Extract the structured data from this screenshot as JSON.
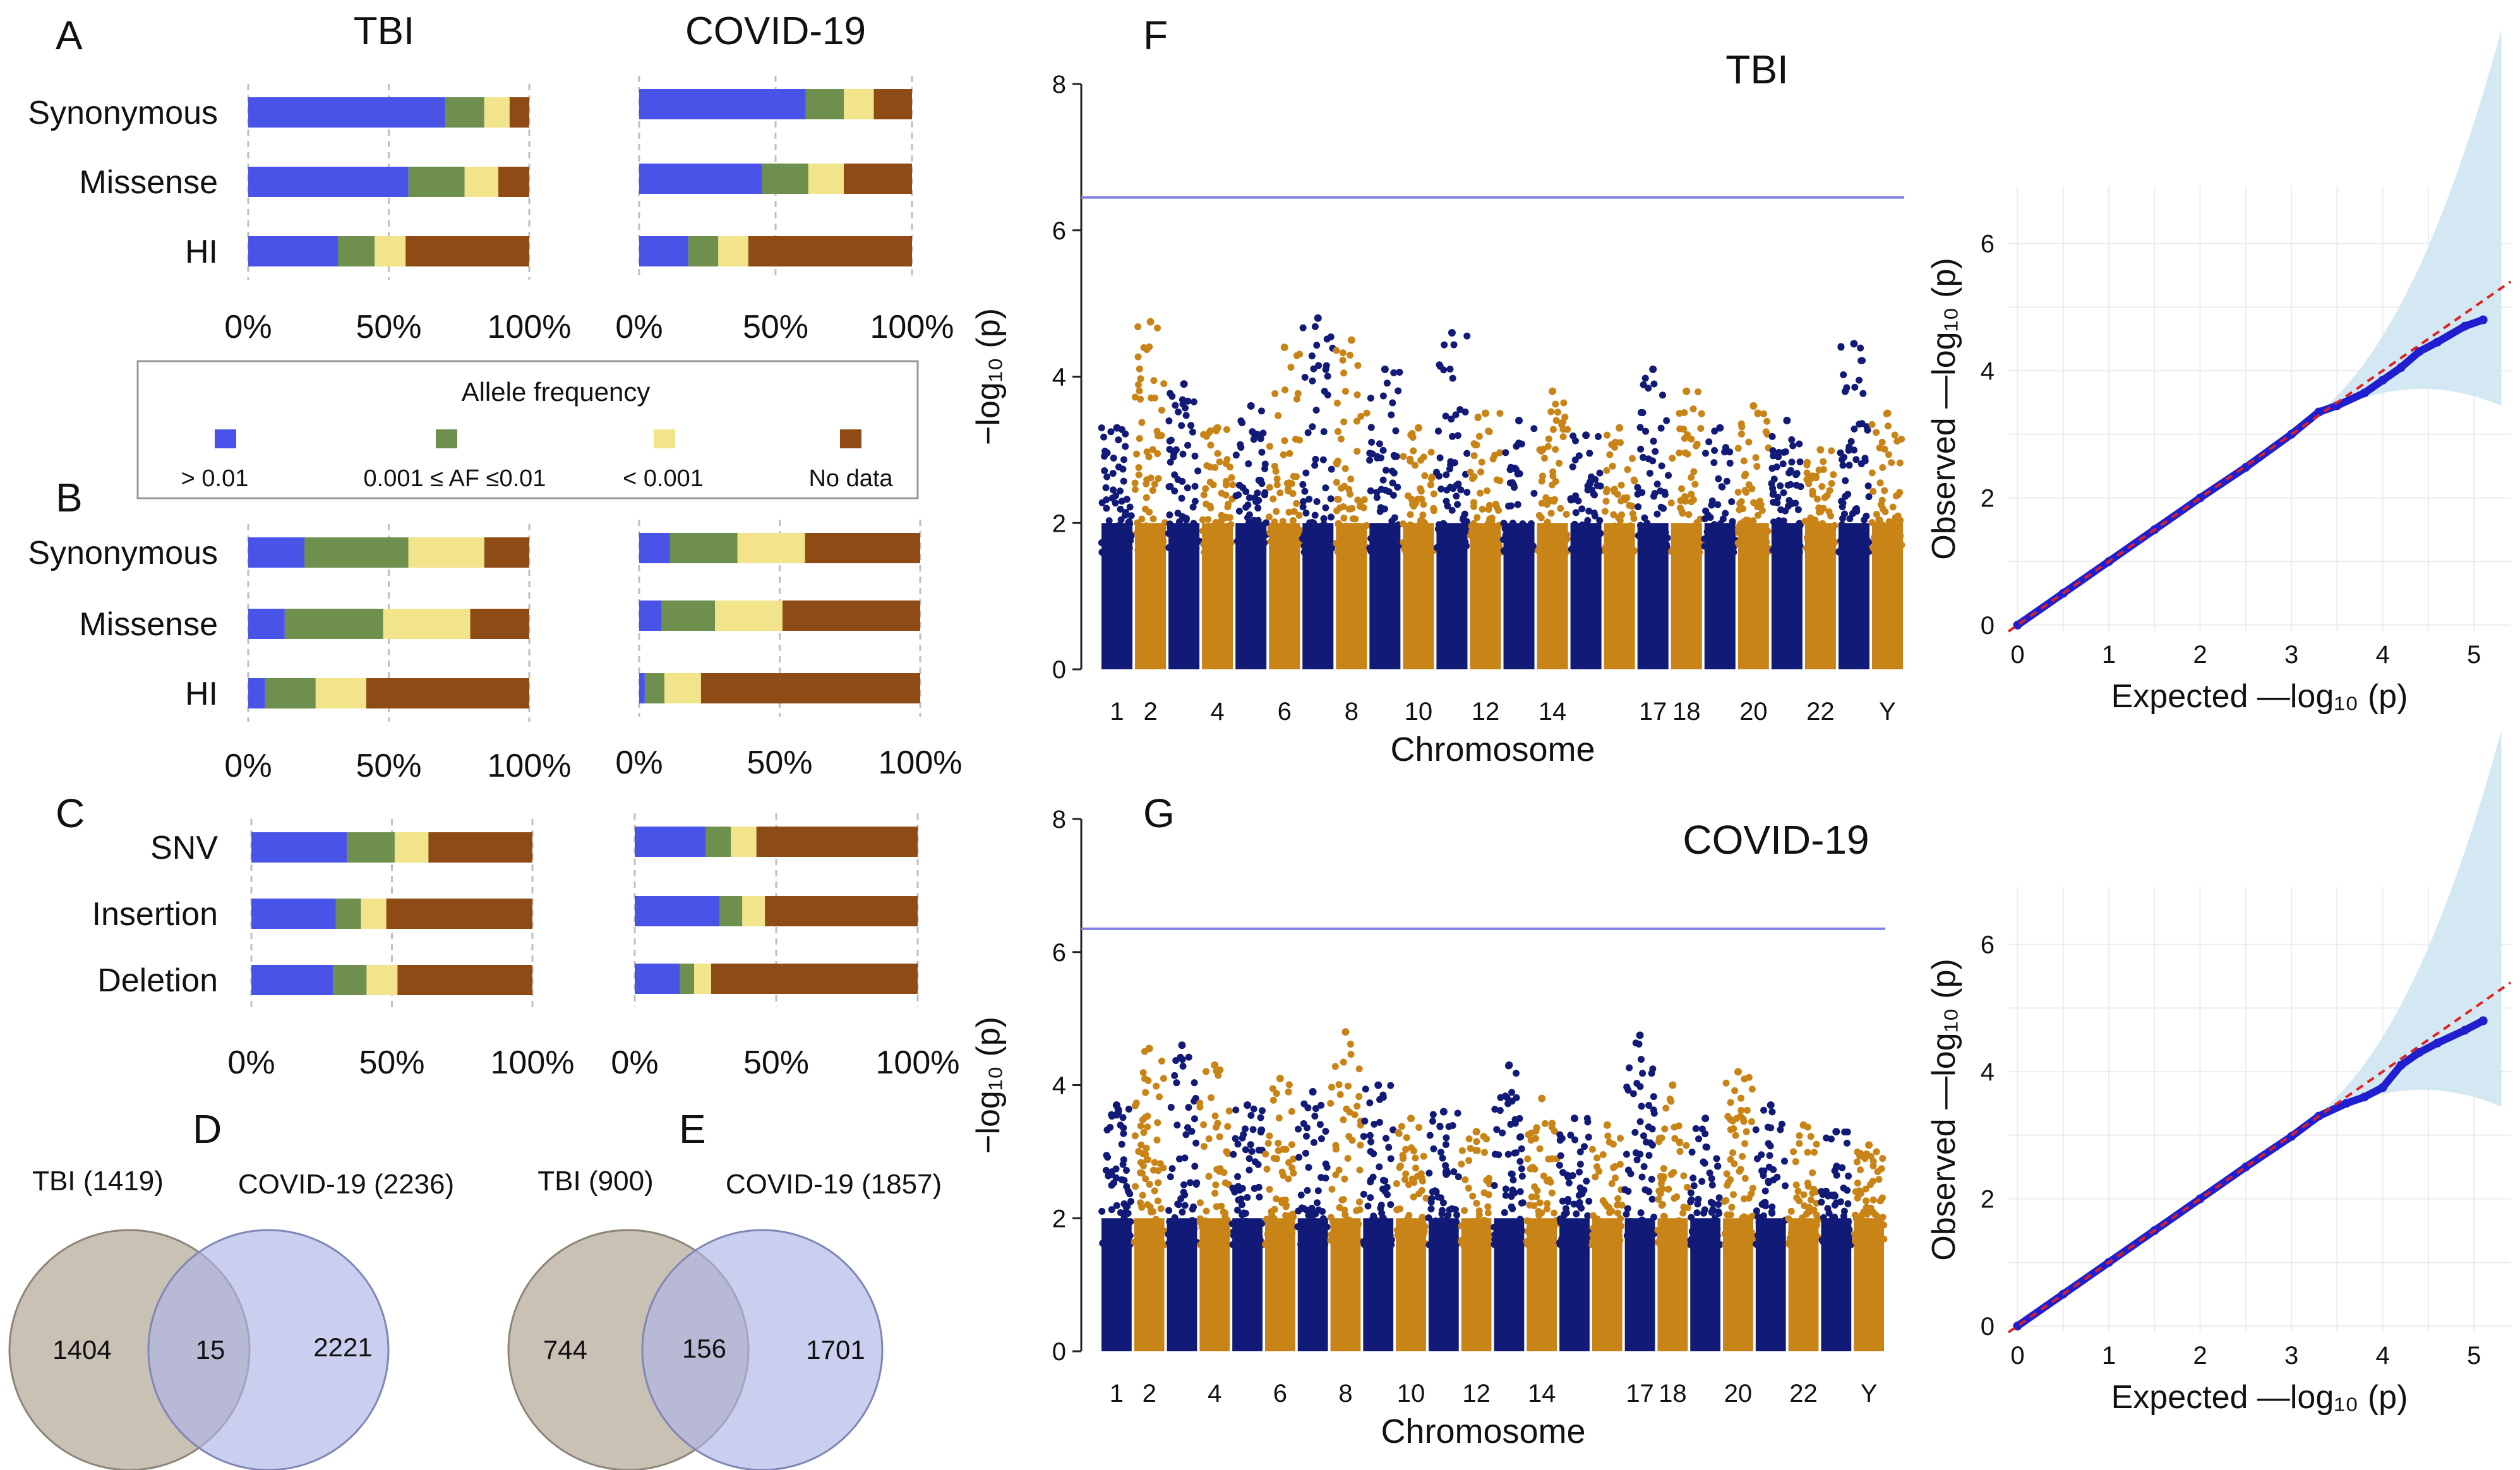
{
  "colors": {
    "af_gt001": "#4a53e8",
    "af_mid": "#6f8f4f",
    "af_lt0001": "#f2e48a",
    "af_nodata": "#8f4b16",
    "manhattan_a": "#121a78",
    "manhattan_b": "#c88417",
    "threshold": "#8080e0",
    "venn_tbi": "#bdb2a2",
    "venn_covid": "#aeb6e6",
    "qq_point": "#1f1fd0",
    "qq_line": "#e02020",
    "qq_band": "#cfe6f2"
  },
  "panels": {
    "A": "A",
    "B": "B",
    "C": "C",
    "D": "D",
    "E": "E",
    "F": "F",
    "G": "G"
  },
  "column_titles": {
    "tbi": "TBI",
    "covid": "COVID-19"
  },
  "bar_axis_ticks": [
    "0%",
    "50%",
    "100%"
  ],
  "legend": {
    "title": "Allele frequency",
    "items": [
      "> 0.01",
      "0.001 ≤ AF ≤0.01",
      "< 0.001",
      "No data"
    ]
  },
  "manhattan_labels": {
    "ylabel": "−log₁₀ (p)",
    "xlabel": "Chromosome",
    "title_f": "TBI",
    "title_g": "COVID-19",
    "chrom_tick_labels": [
      "1",
      "2",
      "4",
      "6",
      "8",
      "10",
      "12",
      "14",
      "17",
      "18",
      "20",
      "22",
      "Y"
    ]
  },
  "qq_labels": {
    "xlabel": "Expected —log₁₀ (p)",
    "ylabel": "Observed —log₁₀ (p)"
  },
  "chart_data": [
    {
      "id": "A-TBI",
      "type": "bar",
      "orientation": "horizontal",
      "stacked": true,
      "title": "TBI",
      "categories": [
        "Synonymous",
        "Missense",
        "HI"
      ],
      "xlim": [
        0,
        100
      ],
      "xunit": "%",
      "series": [
        {
          "name": "> 0.01",
          "values": [
            70,
            57,
            32
          ]
        },
        {
          "name": "0.001 ≤ AF ≤0.01",
          "values": [
            14,
            20,
            13
          ]
        },
        {
          "name": "< 0.001",
          "values": [
            9,
            12,
            11
          ]
        },
        {
          "name": "No data",
          "values": [
            7,
            11,
            44
          ]
        }
      ]
    },
    {
      "id": "A-COVID",
      "type": "bar",
      "orientation": "horizontal",
      "stacked": true,
      "title": "COVID-19",
      "categories": [
        "Synonymous",
        "Missense",
        "HI"
      ],
      "xlim": [
        0,
        100
      ],
      "xunit": "%",
      "series": [
        {
          "name": "> 0.01",
          "values": [
            61,
            45,
            18
          ]
        },
        {
          "name": "0.001 ≤ AF ≤0.01",
          "values": [
            14,
            17,
            11
          ]
        },
        {
          "name": "< 0.001",
          "values": [
            11,
            13,
            11
          ]
        },
        {
          "name": "No data",
          "values": [
            14,
            25,
            60
          ]
        }
      ]
    },
    {
      "id": "B-TBI",
      "type": "bar",
      "orientation": "horizontal",
      "stacked": true,
      "categories": [
        "Synonymous",
        "Missense",
        "HI"
      ],
      "xlim": [
        0,
        100
      ],
      "xunit": "%",
      "series": [
        {
          "name": "> 0.01",
          "values": [
            20,
            13,
            6
          ]
        },
        {
          "name": "0.001 ≤ AF ≤0.01",
          "values": [
            37,
            35,
            18
          ]
        },
        {
          "name": "< 0.001",
          "values": [
            27,
            31,
            18
          ]
        },
        {
          "name": "No data",
          "values": [
            16,
            21,
            58
          ]
        }
      ]
    },
    {
      "id": "B-COVID",
      "type": "bar",
      "orientation": "horizontal",
      "stacked": true,
      "categories": [
        "Synonymous",
        "Missense",
        "HI"
      ],
      "xlim": [
        0,
        100
      ],
      "xunit": "%",
      "series": [
        {
          "name": "> 0.01",
          "values": [
            11,
            8,
            2
          ]
        },
        {
          "name": "0.001 ≤ AF ≤0.01",
          "values": [
            24,
            19,
            7
          ]
        },
        {
          "name": "< 0.001",
          "values": [
            24,
            24,
            13
          ]
        },
        {
          "name": "No data",
          "values": [
            41,
            49,
            78
          ]
        }
      ]
    },
    {
      "id": "C-TBI",
      "type": "bar",
      "orientation": "horizontal",
      "stacked": true,
      "categories": [
        "SNV",
        "Insertion",
        "Deletion"
      ],
      "xlim": [
        0,
        100
      ],
      "xunit": "%",
      "series": [
        {
          "name": "> 0.01",
          "values": [
            34,
            30,
            29
          ]
        },
        {
          "name": "0.001 ≤ AF ≤0.01",
          "values": [
            17,
            9,
            12
          ]
        },
        {
          "name": "< 0.001",
          "values": [
            12,
            9,
            11
          ]
        },
        {
          "name": "No data",
          "values": [
            37,
            52,
            48
          ]
        }
      ]
    },
    {
      "id": "C-COVID",
      "type": "bar",
      "orientation": "horizontal",
      "stacked": true,
      "categories": [
        "SNV",
        "Insertion",
        "Deletion"
      ],
      "xlim": [
        0,
        100
      ],
      "xunit": "%",
      "series": [
        {
          "name": "> 0.01",
          "values": [
            25,
            30,
            16
          ]
        },
        {
          "name": "0.001 ≤ AF ≤0.01",
          "values": [
            9,
            8,
            5
          ]
        },
        {
          "name": "< 0.001",
          "values": [
            9,
            8,
            6
          ]
        },
        {
          "name": "No data",
          "values": [
            57,
            54,
            73
          ]
        }
      ]
    },
    {
      "id": "D",
      "type": "venn",
      "sets": [
        {
          "label": "TBI (1419)",
          "only": 1404
        },
        {
          "label": "COVID-19 (2236)",
          "only": 2221
        }
      ],
      "overlap": 15
    },
    {
      "id": "E",
      "type": "venn",
      "sets": [
        {
          "label": "TBI (900)",
          "only": 744
        },
        {
          "label": "COVID-19 (1857)",
          "only": 1701
        }
      ],
      "overlap": 156
    },
    {
      "id": "F",
      "type": "scatter",
      "subtype": "manhattan",
      "title": "TBI",
      "xlabel": "Chromosome",
      "ylabel": "−log₁₀ (p)",
      "ylim": [
        0,
        8
      ],
      "yticks": [
        0,
        2,
        4,
        6,
        8
      ],
      "threshold": 6.45,
      "chromosome_peaks": [
        3.3,
        4.75,
        3.9,
        3.3,
        3.6,
        4.4,
        4.8,
        4.5,
        4.1,
        3.3,
        4.6,
        3.5,
        3.4,
        3.8,
        3.2,
        3.3,
        4.1,
        3.8,
        3.3,
        3.6,
        3.4,
        3.0,
        4.45,
        3.5
      ]
    },
    {
      "id": "G",
      "type": "scatter",
      "subtype": "manhattan",
      "title": "COVID-19",
      "xlabel": "Chromosome",
      "ylabel": "−log₁₀ (p)",
      "ylim": [
        0,
        8
      ],
      "yticks": [
        0,
        2,
        4,
        6,
        8
      ],
      "threshold": 6.35,
      "chromosome_peaks": [
        3.7,
        4.55,
        4.6,
        4.3,
        3.7,
        4.1,
        3.9,
        4.8,
        4.0,
        3.5,
        3.6,
        3.3,
        4.3,
        3.8,
        3.5,
        3.4,
        4.75,
        4.0,
        3.5,
        4.2,
        3.7,
        3.4,
        3.3,
        3.1
      ]
    },
    {
      "id": "F-QQ",
      "type": "scatter",
      "subtype": "qq",
      "xlabel": "Expected —log₁₀ (p)",
      "ylabel": "Observed —log₁₀ (p)",
      "xlim": [
        -0.1,
        5.4
      ],
      "ylim": [
        -0.1,
        6.9
      ],
      "xticks": [
        0,
        1,
        2,
        3,
        4,
        5
      ],
      "yticks": [
        0,
        2,
        4,
        6
      ],
      "points": [
        [
          0,
          0
        ],
        [
          0.5,
          0.5
        ],
        [
          1,
          1.0
        ],
        [
          1.5,
          1.5
        ],
        [
          2,
          2.0
        ],
        [
          2.5,
          2.48
        ],
        [
          3,
          3.0
        ],
        [
          3.3,
          3.35
        ],
        [
          3.5,
          3.45
        ],
        [
          3.8,
          3.65
        ],
        [
          4.0,
          3.85
        ],
        [
          4.2,
          4.05
        ],
        [
          4.4,
          4.3
        ],
        [
          4.6,
          4.45
        ],
        [
          4.9,
          4.7
        ],
        [
          5.1,
          4.8
        ]
      ]
    },
    {
      "id": "G-QQ",
      "type": "scatter",
      "subtype": "qq",
      "xlabel": "Expected —log₁₀ (p)",
      "ylabel": "Observed —log₁₀ (p)",
      "xlim": [
        -0.1,
        5.4
      ],
      "ylim": [
        -0.1,
        6.9
      ],
      "xticks": [
        0,
        1,
        2,
        3,
        4,
        5
      ],
      "yticks": [
        0,
        2,
        4,
        6
      ],
      "points": [
        [
          0,
          0
        ],
        [
          0.5,
          0.5
        ],
        [
          1,
          1.0
        ],
        [
          1.5,
          1.5
        ],
        [
          2,
          2.0
        ],
        [
          2.5,
          2.5
        ],
        [
          3,
          2.98
        ],
        [
          3.3,
          3.3
        ],
        [
          3.6,
          3.5
        ],
        [
          3.8,
          3.6
        ],
        [
          4.0,
          3.75
        ],
        [
          4.2,
          4.1
        ],
        [
          4.4,
          4.3
        ],
        [
          4.6,
          4.45
        ],
        [
          4.9,
          4.65
        ],
        [
          5.1,
          4.8
        ]
      ]
    }
  ]
}
